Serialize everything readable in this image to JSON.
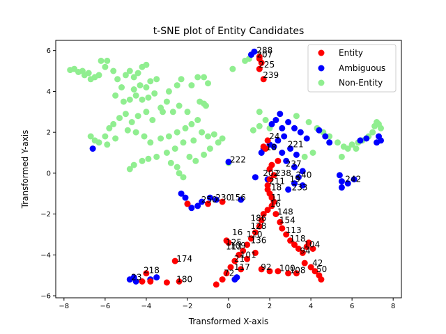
{
  "chart_data": {
    "type": "scatter",
    "title": "t-SNE plot of Entity Candidates",
    "xlabel": "Transformed X-axis",
    "ylabel": "Transformed Y-axis",
    "xlim": [
      -8.4,
      8.4
    ],
    "ylim": [
      -6.1,
      6.5
    ],
    "xticks": [
      -8,
      -6,
      -4,
      -2,
      0,
      2,
      4,
      6,
      8
    ],
    "yticks": [
      -6,
      -4,
      -2,
      0,
      2,
      4,
      6
    ],
    "grid": false,
    "legend_position": "top-right",
    "colors": {
      "Entity": "#ff0000",
      "Ambiguous": "#0000ff",
      "Non-Entity": "#90ee90"
    },
    "series": [
      {
        "name": "Non-Entity",
        "color": "#90ee90",
        "points": [
          [
            -7.7,
            5.05
          ],
          [
            -7.5,
            5.1
          ],
          [
            -7.3,
            4.95
          ],
          [
            -7.1,
            5.0
          ],
          [
            -7.0,
            4.8
          ],
          [
            -6.8,
            4.9
          ],
          [
            -6.7,
            4.6
          ],
          [
            -6.5,
            4.7
          ],
          [
            -6.3,
            4.8
          ],
          [
            -6.0,
            5.2
          ],
          [
            -6.2,
            5.5
          ],
          [
            -5.9,
            5.5
          ],
          [
            -5.6,
            5.0
          ],
          [
            -5.4,
            4.6
          ],
          [
            -5.0,
            4.8
          ],
          [
            -4.8,
            5.0
          ],
          [
            -4.6,
            4.7
          ],
          [
            -4.4,
            4.9
          ],
          [
            -4.2,
            5.2
          ],
          [
            -4.0,
            5.3
          ],
          [
            -3.8,
            4.5
          ],
          [
            -3.5,
            4.6
          ],
          [
            -4.0,
            4.2
          ],
          [
            -4.3,
            4.3
          ],
          [
            -4.6,
            4.1
          ],
          [
            -5.2,
            4.2
          ],
          [
            -5.5,
            3.8
          ],
          [
            -5.1,
            3.5
          ],
          [
            -4.8,
            3.6
          ],
          [
            -4.5,
            3.8
          ],
          [
            -4.2,
            3.6
          ],
          [
            -3.9,
            3.7
          ],
          [
            -3.6,
            3.9
          ],
          [
            -3.3,
            3.2
          ],
          [
            -3.0,
            3.5
          ],
          [
            -2.7,
            3.0
          ],
          [
            -2.4,
            3.3
          ],
          [
            -2.0,
            3.0
          ],
          [
            -1.8,
            4.3
          ],
          [
            -1.5,
            4.7
          ],
          [
            -1.2,
            4.7
          ],
          [
            -1.0,
            4.4
          ],
          [
            -1.4,
            3.5
          ],
          [
            -1.2,
            3.4
          ],
          [
            -1.1,
            3.3
          ],
          [
            -2.3,
            4.6
          ],
          [
            -2.5,
            4.3
          ],
          [
            -2.9,
            4.0
          ],
          [
            -3.2,
            3.0
          ],
          [
            -3.7,
            2.6
          ],
          [
            -4.0,
            3.0
          ],
          [
            -4.4,
            2.8
          ],
          [
            -4.7,
            2.5
          ],
          [
            -5.0,
            2.9
          ],
          [
            -5.3,
            2.7
          ],
          [
            -5.6,
            2.4
          ],
          [
            -5.8,
            2.2
          ],
          [
            -6.0,
            1.8
          ],
          [
            -6.3,
            1.5
          ],
          [
            -6.7,
            1.8
          ],
          [
            -6.5,
            1.6
          ],
          [
            -5.9,
            1.4
          ],
          [
            -5.5,
            1.7
          ],
          [
            -4.9,
            2.1
          ],
          [
            -4.5,
            2.0
          ],
          [
            -4.1,
            1.8
          ],
          [
            -3.8,
            1.5
          ],
          [
            -3.3,
            1.7
          ],
          [
            -2.9,
            1.8
          ],
          [
            -2.5,
            2.0
          ],
          [
            -2.1,
            2.2
          ],
          [
            -1.8,
            2.4
          ],
          [
            -1.5,
            2.6
          ],
          [
            -1.3,
            2.0
          ],
          [
            -1.0,
            1.8
          ],
          [
            -0.7,
            1.9
          ],
          [
            -0.5,
            1.5
          ],
          [
            -0.3,
            1.7
          ],
          [
            -1.7,
            1.6
          ],
          [
            -2.2,
            1.5
          ],
          [
            -2.6,
            1.2
          ],
          [
            -3.0,
            1.0
          ],
          [
            -3.5,
            0.8
          ],
          [
            -3.9,
            0.7
          ],
          [
            -4.2,
            0.6
          ],
          [
            -4.6,
            0.4
          ],
          [
            -4.8,
            0.2
          ],
          [
            -2.8,
            0.5
          ],
          [
            -2.5,
            0.3
          ],
          [
            -2.4,
            0.0
          ],
          [
            -2.2,
            -0.2
          ],
          [
            -1.9,
            0.8
          ],
          [
            -1.6,
            0.6
          ],
          [
            -1.2,
            0.9
          ],
          [
            -0.9,
            1.2
          ],
          [
            0.2,
            5.1
          ],
          [
            0.8,
            5.5
          ],
          [
            1.0,
            5.6
          ],
          [
            1.5,
            3.0
          ],
          [
            1.8,
            2.6
          ],
          [
            1.5,
            2.3
          ],
          [
            1.2,
            2.1
          ],
          [
            2.0,
            2.2
          ],
          [
            0.0,
            0.5
          ],
          [
            3.3,
            2.8
          ],
          [
            3.9,
            2.5
          ],
          [
            4.3,
            2.2
          ],
          [
            4.6,
            2.0
          ],
          [
            4.9,
            1.8
          ],
          [
            5.3,
            1.5
          ],
          [
            5.6,
            1.3
          ],
          [
            6.0,
            1.4
          ],
          [
            6.3,
            1.5
          ],
          [
            6.5,
            1.6
          ],
          [
            6.8,
            1.8
          ],
          [
            7.0,
            2.0
          ],
          [
            7.1,
            2.3
          ],
          [
            7.3,
            2.4
          ],
          [
            7.4,
            2.2
          ],
          [
            7.2,
            2.5
          ],
          [
            5.8,
            1.2
          ],
          [
            5.5,
            0.8
          ],
          [
            6.2,
            1.2
          ],
          [
            4.1,
            1.0
          ],
          [
            3.7,
            0.8
          ]
        ]
      },
      {
        "name": "Ambiguous",
        "color": "#0000ff",
        "points": [
          [
            1.1,
            5.8
          ],
          [
            1.25,
            5.95
          ],
          [
            2.5,
            2.9
          ],
          [
            2.3,
            2.6
          ],
          [
            2.1,
            2.4
          ],
          [
            2.6,
            2.2
          ],
          [
            2.9,
            2.5
          ],
          [
            3.2,
            2.2
          ],
          [
            3.5,
            2.0
          ],
          [
            3.8,
            1.7
          ],
          [
            2.7,
            1.8
          ],
          [
            2.4,
            1.6
          ],
          [
            2.2,
            1.3
          ],
          [
            2.0,
            1.4
          ],
          [
            1.7,
            1.2
          ],
          [
            1.6,
            1.0
          ],
          [
            2.6,
            1.0
          ],
          [
            3.0,
            1.2
          ],
          [
            3.3,
            0.9
          ],
          [
            2.8,
            0.6
          ],
          [
            3.2,
            0.3
          ],
          [
            3.6,
            0.1
          ],
          [
            3.4,
            -0.2
          ],
          [
            3.2,
            -0.5
          ],
          [
            3.6,
            -0.6
          ],
          [
            2.9,
            -0.8
          ],
          [
            1.9,
            -0.3
          ],
          [
            1.3,
            -0.2
          ],
          [
            4.4,
            2.1
          ],
          [
            4.7,
            1.8
          ],
          [
            4.9,
            1.5
          ],
          [
            5.4,
            -0.1
          ],
          [
            5.5,
            -0.4
          ],
          [
            5.5,
            -0.7
          ],
          [
            5.8,
            -0.5
          ],
          [
            6.1,
            -0.3
          ],
          [
            6.4,
            1.6
          ],
          [
            6.7,
            1.7
          ],
          [
            7.2,
            1.5
          ],
          [
            7.4,
            1.6
          ],
          [
            7.3,
            1.8
          ],
          [
            -6.6,
            1.2
          ],
          [
            -2.3,
            -1.0
          ],
          [
            -2.1,
            -1.2
          ],
          [
            -2.0,
            -1.5
          ],
          [
            -1.8,
            -1.7
          ],
          [
            -1.5,
            -1.6
          ],
          [
            -1.3,
            -1.4
          ],
          [
            -0.9,
            -1.2
          ],
          [
            -0.6,
            -1.3
          ],
          [
            0.6,
            -1.3
          ],
          [
            0.0,
            0.55
          ],
          [
            -4.8,
            -5.2
          ],
          [
            -4.6,
            -5.1
          ],
          [
            -4.5,
            -5.3
          ],
          [
            -3.8,
            -5.2
          ],
          [
            -3.5,
            -5.1
          ],
          [
            0.3,
            -5.2
          ],
          [
            0.4,
            -5.1
          ]
        ]
      },
      {
        "name": "Entity",
        "color": "#ff0000",
        "points": [
          [
            1.5,
            5.7
          ],
          [
            1.5,
            5.6
          ],
          [
            1.6,
            5.4
          ],
          [
            1.5,
            5.1
          ],
          [
            1.7,
            4.6
          ],
          [
            1.9,
            1.6
          ],
          [
            1.8,
            1.2
          ],
          [
            1.7,
            1.3
          ],
          [
            2.4,
            0.6
          ],
          [
            2.1,
            0.4
          ],
          [
            2.0,
            0.2
          ],
          [
            2.2,
            -0.1
          ],
          [
            2.0,
            -0.3
          ],
          [
            1.9,
            -0.6
          ],
          [
            1.9,
            -0.8
          ],
          [
            2.0,
            -1.0
          ],
          [
            2.1,
            -1.2
          ],
          [
            2.2,
            -1.4
          ],
          [
            2.1,
            -1.6
          ],
          [
            1.9,
            -1.8
          ],
          [
            1.7,
            -2.0
          ],
          [
            1.6,
            -2.3
          ],
          [
            1.5,
            -2.6
          ],
          [
            1.3,
            -2.9
          ],
          [
            1.1,
            -3.2
          ],
          [
            0.9,
            -3.5
          ],
          [
            0.7,
            -3.8
          ],
          [
            0.5,
            -4.0
          ],
          [
            0.3,
            -4.3
          ],
          [
            0.1,
            -4.6
          ],
          [
            -0.1,
            -4.9
          ],
          [
            -0.3,
            -5.2
          ],
          [
            -0.6,
            -5.45
          ],
          [
            0.0,
            -3.4
          ],
          [
            -0.1,
            -3.3
          ],
          [
            1.3,
            -3.9
          ],
          [
            0.9,
            -4.2
          ],
          [
            0.6,
            -4.7
          ],
          [
            2.3,
            -2.0
          ],
          [
            2.5,
            -2.4
          ],
          [
            2.6,
            -2.7
          ],
          [
            2.8,
            -3.0
          ],
          [
            3.0,
            -3.3
          ],
          [
            3.2,
            -3.5
          ],
          [
            3.4,
            -3.7
          ],
          [
            3.6,
            -3.9
          ],
          [
            3.9,
            -3.4
          ],
          [
            4.1,
            -3.7
          ],
          [
            3.8,
            -3.6
          ],
          [
            1.6,
            -4.7
          ],
          [
            2.0,
            -4.8
          ],
          [
            2.4,
            -4.8
          ],
          [
            2.9,
            -4.9
          ],
          [
            3.3,
            -4.9
          ],
          [
            3.7,
            -4.4
          ],
          [
            4.0,
            -4.6
          ],
          [
            4.2,
            -4.8
          ],
          [
            4.4,
            -5.0
          ],
          [
            4.5,
            -5.2
          ],
          [
            -0.3,
            -1.4
          ],
          [
            -1.0,
            -1.5
          ],
          [
            -2.0,
            -1.5
          ],
          [
            -2.6,
            -4.3
          ],
          [
            -4.2,
            -5.3
          ],
          [
            -3.8,
            -5.3
          ],
          [
            -3.0,
            -5.35
          ],
          [
            -2.4,
            -5.3
          ],
          [
            -4.0,
            -4.9
          ]
        ]
      }
    ],
    "annotations": [
      {
        "text": "288",
        "x": 1.3,
        "y": 5.9
      },
      {
        "text": "207",
        "x": 1.3,
        "y": 5.7
      },
      {
        "text": "225",
        "x": 1.4,
        "y": 5.2
      },
      {
        "text": "239",
        "x": 1.6,
        "y": 4.7
      },
      {
        "text": "24",
        "x": 1.9,
        "y": 1.7
      },
      {
        "text": "18",
        "x": 1.75,
        "y": 1.15
      },
      {
        "text": "221",
        "x": 2.8,
        "y": 1.3
      },
      {
        "text": "237",
        "x": 2.7,
        "y": 0.35
      },
      {
        "text": "202",
        "x": 1.6,
        "y": -0.1
      },
      {
        "text": "238",
        "x": 2.2,
        "y": -0.1
      },
      {
        "text": "240",
        "x": 3.2,
        "y": -0.2
      },
      {
        "text": "211",
        "x": 1.9,
        "y": -0.5
      },
      {
        "text": "19",
        "x": 2.9,
        "y": -0.4
      },
      {
        "text": "18",
        "x": 2.0,
        "y": -0.8
      },
      {
        "text": "233",
        "x": 3.0,
        "y": -0.8
      },
      {
        "text": "11",
        "x": 2.0,
        "y": -1.3
      },
      {
        "text": "16",
        "x": 1.95,
        "y": -1.6
      },
      {
        "text": "148",
        "x": 2.3,
        "y": -2.0
      },
      {
        "text": "186",
        "x": 1.0,
        "y": -2.3
      },
      {
        "text": "154",
        "x": 2.4,
        "y": -2.4
      },
      {
        "text": "128",
        "x": 1.0,
        "y": -2.7
      },
      {
        "text": "113",
        "x": 2.7,
        "y": -2.9
      },
      {
        "text": "16",
        "x": 0.1,
        "y": -3.0
      },
      {
        "text": "120",
        "x": 0.8,
        "y": -3.1
      },
      {
        "text": "118",
        "x": 2.9,
        "y": -3.3
      },
      {
        "text": "136",
        "x": 1.0,
        "y": -3.4
      },
      {
        "text": "104",
        "x": 3.6,
        "y": -3.6
      },
      {
        "text": "125",
        "x": -0.2,
        "y": -3.5
      },
      {
        "text": "109",
        "x": 0.0,
        "y": -3.65
      },
      {
        "text": "113",
        "x": -0.2,
        "y": -3.7
      },
      {
        "text": "94",
        "x": 3.4,
        "y": -3.9
      },
      {
        "text": "101",
        "x": 0.5,
        "y": -4.1
      },
      {
        "text": "21",
        "x": 0.2,
        "y": -4.3
      },
      {
        "text": "117",
        "x": 0.2,
        "y": -4.7
      },
      {
        "text": "72",
        "x": -0.3,
        "y": -5.0
      },
      {
        "text": "92",
        "x": 1.5,
        "y": -4.7
      },
      {
        "text": "100",
        "x": 2.4,
        "y": -4.75
      },
      {
        "text": "108",
        "x": 2.9,
        "y": -4.85
      },
      {
        "text": "42",
        "x": 4.0,
        "y": -4.5
      },
      {
        "text": "50",
        "x": 4.2,
        "y": -4.8
      },
      {
        "text": "174",
        "x": -2.6,
        "y": -4.3
      },
      {
        "text": "218",
        "x": -4.2,
        "y": -4.85
      },
      {
        "text": "180",
        "x": -2.6,
        "y": -5.3
      },
      {
        "text": "23",
        "x": -4.8,
        "y": -5.2
      },
      {
        "text": "250",
        "x": -1.4,
        "y": -1.4
      },
      {
        "text": "230",
        "x": -0.7,
        "y": -1.3
      },
      {
        "text": "156",
        "x": 0.0,
        "y": -1.3
      },
      {
        "text": "222",
        "x": 0.0,
        "y": 0.55
      },
      {
        "text": "242",
        "x": 5.6,
        "y": -0.4
      }
    ]
  }
}
